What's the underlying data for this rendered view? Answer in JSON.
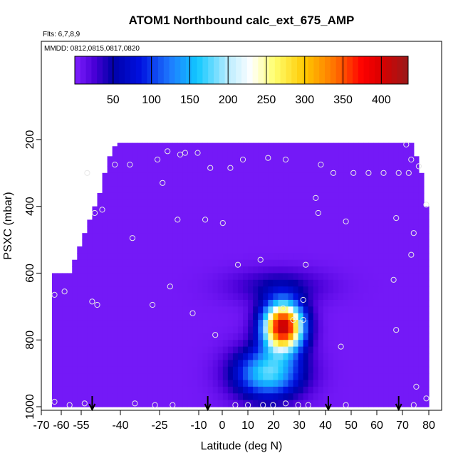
{
  "chart_data": {
    "type": "heatmap",
    "title": "ATOM1 Northbound calc_ext_675_AMP",
    "notes": {
      "flights": "Flts: 6,7,8,9",
      "dates": "MMDD: 0812,0815,0817,0820"
    },
    "xlabel": "Latitude (deg N)",
    "ylabel": "PSXC (mbar)",
    "xlim": [
      -70,
      80
    ],
    "ylim": [
      1000,
      100
    ],
    "y_reversed": true,
    "xticks": [
      -70,
      -60,
      -55,
      -40,
      -25,
      -10,
      0,
      10,
      20,
      30,
      40,
      50,
      60,
      70,
      80
    ],
    "xtick_labels": [
      "-70",
      "-60",
      "-55",
      "-40",
      "-25",
      "-10",
      "0",
      "10",
      "20",
      "30",
      "40",
      "50",
      "60",
      "70",
      "80"
    ],
    "yticks": [
      200,
      400,
      600,
      800,
      1000
    ],
    "ytick_labels": [
      "200",
      "400",
      "600",
      "800",
      "1000"
    ],
    "colorbar": {
      "range": [
        0,
        435
      ],
      "ticks": [
        50,
        100,
        150,
        200,
        250,
        300,
        350,
        400
      ],
      "tick_labels": [
        "50",
        "100",
        "150",
        "200",
        "250",
        "300",
        "350",
        "400"
      ],
      "stops": [
        {
          "v": 0,
          "c": "#7f1fff"
        },
        {
          "v": 25,
          "c": "#4a00d8"
        },
        {
          "v": 50,
          "c": "#0000a8"
        },
        {
          "v": 85,
          "c": "#0010e0"
        },
        {
          "v": 125,
          "c": "#1e7cff"
        },
        {
          "v": 160,
          "c": "#10c8ff"
        },
        {
          "v": 200,
          "c": "#b8ecff"
        },
        {
          "v": 230,
          "c": "#ffffff"
        },
        {
          "v": 260,
          "c": "#ffff70"
        },
        {
          "v": 300,
          "c": "#ffc800"
        },
        {
          "v": 340,
          "c": "#ff7000"
        },
        {
          "v": 375,
          "c": "#ff0000"
        },
        {
          "v": 400,
          "c": "#d80000"
        },
        {
          "v": 435,
          "c": "#9a1a1a"
        }
      ]
    },
    "background_value": 5,
    "data_extent_top_mbar": [
      [
        -70,
        660
      ],
      [
        -63,
        600
      ],
      [
        -61,
        560
      ],
      [
        -59,
        520
      ],
      [
        -57,
        480
      ],
      [
        -55,
        440
      ],
      [
        -53,
        400
      ],
      [
        -51,
        360
      ],
      [
        -49,
        300
      ],
      [
        -47,
        250
      ],
      [
        -45,
        220
      ],
      [
        -43,
        210
      ],
      [
        -27,
        210
      ],
      [
        74,
        210
      ],
      [
        75,
        250
      ],
      [
        77,
        300
      ],
      [
        78,
        350
      ],
      [
        80,
        400
      ]
    ],
    "feature": {
      "center_lat": 22,
      "center_mbar": 760,
      "peak_value": 410,
      "half_width_lat": 10,
      "half_width_mbar": 90
    },
    "observation_points": [
      [
        -69,
        985
      ],
      [
        -69,
        665
      ],
      [
        -65,
        655
      ],
      [
        -63,
        995
      ],
      [
        -57,
        990
      ],
      [
        -54,
        685
      ],
      [
        -52,
        695
      ],
      [
        -56,
        300
      ],
      [
        -53,
        420
      ],
      [
        -50,
        410
      ],
      [
        -45,
        275
      ],
      [
        -39,
        275
      ],
      [
        -38,
        495
      ],
      [
        -37,
        990
      ],
      [
        -30,
        695
      ],
      [
        -29,
        995
      ],
      [
        -28,
        260
      ],
      [
        -26,
        330
      ],
      [
        -24,
        235
      ],
      [
        -23,
        640
      ],
      [
        -22,
        995
      ],
      [
        -20,
        440
      ],
      [
        -19,
        245
      ],
      [
        -17,
        240
      ],
      [
        -14,
        720
      ],
      [
        -12,
        240
      ],
      [
        -9,
        440
      ],
      [
        -7,
        285
      ],
      [
        -5,
        785
      ],
      [
        -2,
        450
      ],
      [
        1,
        285
      ],
      [
        3,
        995
      ],
      [
        4,
        575
      ],
      [
        6,
        260
      ],
      [
        8,
        995
      ],
      [
        13,
        560
      ],
      [
        14,
        995
      ],
      [
        16,
        255
      ],
      [
        18,
        995
      ],
      [
        22,
        705
      ],
      [
        23,
        260
      ],
      [
        23,
        990
      ],
      [
        26,
        740
      ],
      [
        28,
        995
      ],
      [
        30,
        680
      ],
      [
        30,
        740
      ],
      [
        31,
        575
      ],
      [
        32,
        995
      ],
      [
        35,
        375
      ],
      [
        36,
        420
      ],
      [
        37,
        275
      ],
      [
        42,
        300
      ],
      [
        45,
        820
      ],
      [
        47,
        995
      ],
      [
        47,
        445
      ],
      [
        50,
        300
      ],
      [
        56,
        300
      ],
      [
        62,
        300
      ],
      [
        66,
        620
      ],
      [
        67,
        770
      ],
      [
        67,
        435
      ],
      [
        68,
        300
      ],
      [
        71,
        215
      ],
      [
        72,
        300
      ],
      [
        73,
        260
      ],
      [
        73,
        545
      ],
      [
        74,
        480
      ],
      [
        74,
        995
      ],
      [
        75,
        940
      ],
      [
        76,
        280
      ],
      [
        79,
        395
      ],
      [
        79,
        975
      ]
    ],
    "flight_arrows_lat": [
      -54,
      -8,
      40,
      68
    ]
  }
}
